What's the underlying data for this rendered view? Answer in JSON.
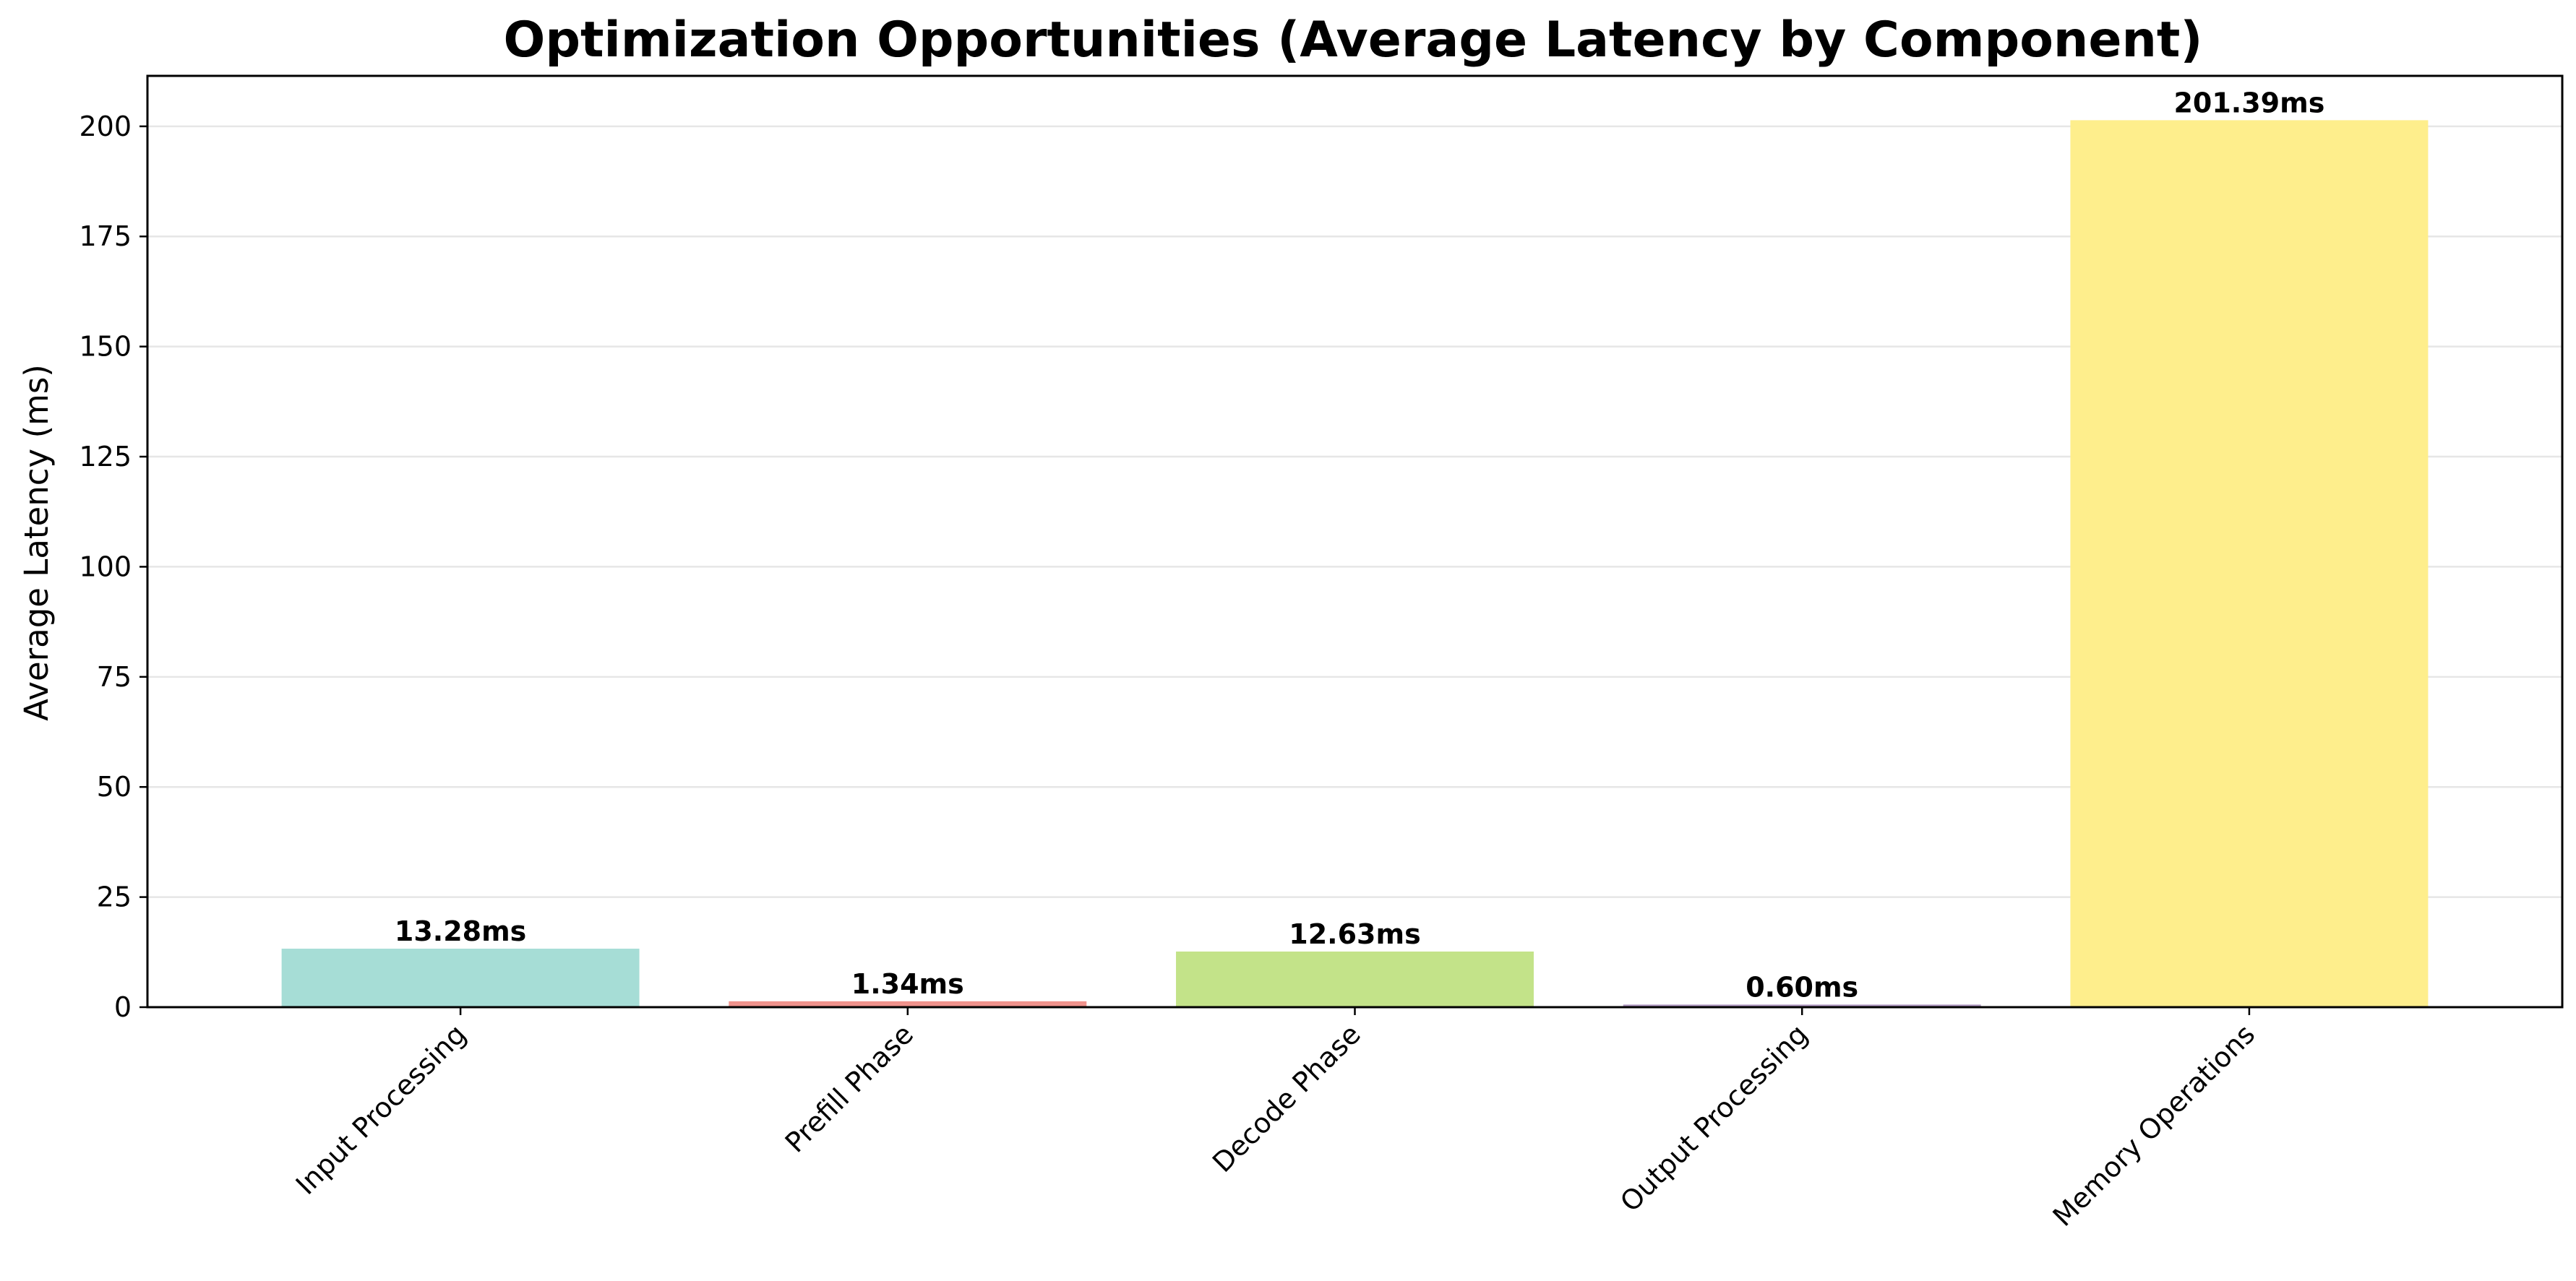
{
  "chart_data": {
    "type": "bar",
    "title": "Optimization Opportunities (Average Latency by Component)",
    "xlabel": "",
    "ylabel": "Average Latency (ms)",
    "categories": [
      "Input Processing",
      "Prefill Phase",
      "Decode Phase",
      "Output Processing",
      "Memory Operations"
    ],
    "values": [
      13.28,
      1.34,
      12.63,
      0.6,
      201.39
    ],
    "value_labels": [
      "13.28ms",
      "1.34ms",
      "12.63ms",
      "0.60ms",
      "201.39ms"
    ],
    "bar_colors": [
      "#a6ddd6",
      "#f0928c",
      "#c3e389",
      "#b39cc4",
      "#feee8c"
    ],
    "ylim": [
      0,
      211.46
    ],
    "yticks": [
      0,
      25,
      50,
      75,
      100,
      125,
      150,
      175,
      200
    ],
    "grid": "y",
    "legend": "none",
    "grid_color": "#e6e6e6",
    "axis_color": "#000000"
  }
}
